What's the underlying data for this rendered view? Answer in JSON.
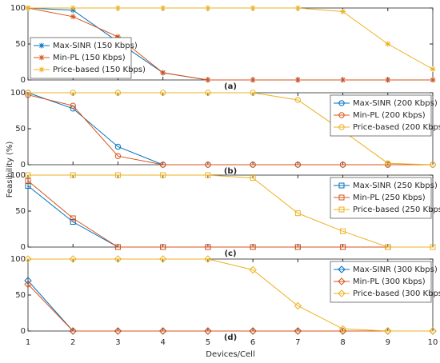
{
  "ylabel": "Feasibility (%)",
  "xlabel": "Devices/Cell",
  "chart_data": [
    {
      "type": "line",
      "label": "(a)",
      "marker": "star",
      "legend": "lower left",
      "x": [
        1,
        2,
        3,
        4,
        5,
        6,
        7,
        8,
        9,
        10
      ],
      "xlim": [
        1,
        10
      ],
      "xticks": [
        1,
        2,
        3,
        4,
        5,
        6,
        7,
        8,
        9,
        10
      ],
      "ylim": [
        0,
        100
      ],
      "yticks": [
        0,
        50,
        100
      ],
      "series": [
        {
          "name": "Max-SINR (150 Kbps)",
          "color": "#0072bd",
          "values": [
            100,
            97,
            53,
            10,
            0,
            0,
            0,
            0,
            0,
            0
          ]
        },
        {
          "name": "Min-PL (150 Kbps)",
          "color": "#d95319",
          "values": [
            100,
            88,
            60,
            10,
            0,
            0,
            0,
            0,
            0,
            0
          ]
        },
        {
          "name": "Price-based (150 Kbps)",
          "color": "#edb120",
          "values": [
            100,
            100,
            100,
            100,
            100,
            100,
            100,
            95,
            50,
            15
          ]
        }
      ]
    },
    {
      "type": "line",
      "label": "(b)",
      "marker": "circle",
      "legend": "upper right",
      "x": [
        1,
        2,
        3,
        4,
        5,
        6,
        7,
        8,
        9,
        10
      ],
      "xlim": [
        1,
        10
      ],
      "xticks": [
        1,
        2,
        3,
        4,
        5,
        6,
        7,
        8,
        9,
        10
      ],
      "ylim": [
        0,
        100
      ],
      "yticks": [
        0,
        50,
        100
      ],
      "series": [
        {
          "name": "Max-SINR (200 Kbps)",
          "color": "#0072bd",
          "values": [
            100,
            78,
            25,
            0,
            0,
            0,
            0,
            0,
            0,
            0
          ]
        },
        {
          "name": "Min-PL (200 Kbps)",
          "color": "#d95319",
          "values": [
            97,
            82,
            12,
            0,
            0,
            0,
            0,
            0,
            0,
            0
          ]
        },
        {
          "name": "Price-based (200 Kbps)",
          "color": "#edb120",
          "values": [
            100,
            100,
            100,
            100,
            100,
            100,
            90,
            47,
            2,
            0
          ]
        }
      ]
    },
    {
      "type": "line",
      "label": "(c)",
      "marker": "square",
      "legend": "upper right",
      "x": [
        1,
        2,
        3,
        4,
        5,
        6,
        7,
        8,
        9,
        10
      ],
      "xlim": [
        1,
        10
      ],
      "xticks": [
        1,
        2,
        3,
        4,
        5,
        6,
        7,
        8,
        9,
        10
      ],
      "ylim": [
        0,
        100
      ],
      "yticks": [
        0,
        50,
        100
      ],
      "series": [
        {
          "name": "Max-SINR (250 Kbps)",
          "color": "#0072bd",
          "values": [
            85,
            35,
            0,
            0,
            0,
            0,
            0,
            0,
            0,
            0
          ]
        },
        {
          "name": "Min-PL (250 Kbps)",
          "color": "#d95319",
          "values": [
            92,
            40,
            0,
            0,
            0,
            0,
            0,
            0,
            0,
            0
          ]
        },
        {
          "name": "Price-based (250 Kbps)",
          "color": "#edb120",
          "values": [
            100,
            100,
            100,
            100,
            100,
            96,
            47,
            22,
            0,
            0
          ]
        }
      ]
    },
    {
      "type": "line",
      "label": "(d)",
      "marker": "diamond",
      "legend": "upper right",
      "x": [
        1,
        2,
        3,
        4,
        5,
        6,
        7,
        8,
        9,
        10
      ],
      "xlim": [
        1,
        10
      ],
      "xticks": [
        1,
        2,
        3,
        4,
        5,
        6,
        7,
        8,
        9,
        10
      ],
      "ylim": [
        0,
        100
      ],
      "yticks": [
        0,
        50,
        100
      ],
      "series": [
        {
          "name": "Max-SINR (300 Kbps)",
          "color": "#0072bd",
          "values": [
            70,
            0,
            0,
            0,
            0,
            0,
            0,
            0,
            0,
            0
          ]
        },
        {
          "name": "Min-PL (300 Kbps)",
          "color": "#d95319",
          "values": [
            65,
            0,
            0,
            0,
            0,
            0,
            0,
            0,
            0,
            0
          ]
        },
        {
          "name": "Price-based (300 Kbps)",
          "color": "#edb120",
          "values": [
            100,
            100,
            100,
            100,
            100,
            85,
            35,
            3,
            0,
            0
          ]
        }
      ]
    }
  ]
}
